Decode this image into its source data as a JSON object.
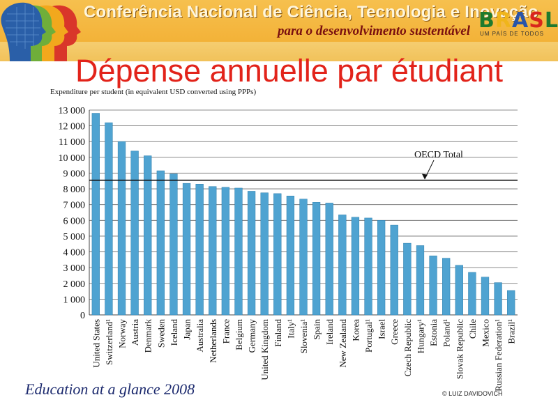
{
  "banner": {
    "title": "Conferência Nacional de Ciência, Tecnologia e Inovação",
    "subtitle": "para o desenvolvimento sustentável",
    "logo_word": [
      "B",
      "R",
      "A",
      "S",
      "L"
    ],
    "logo_tagline": "UM PAÍS DE TODOS"
  },
  "slide_title": "Dépense annuelle par étudiant",
  "source_caption": "Education at a glance 2008",
  "copyright": "© LUIZ DAVIDOVICH",
  "colors": {
    "bar": "#4fa3d1",
    "bar_edge": "#2f7fad",
    "title": "#e2231a",
    "grid": "#666666"
  },
  "chart_data": {
    "type": "bar",
    "title": "Expenditure per student (in equivalent USD converted using PPPs)",
    "ylim": [
      0,
      13000
    ],
    "yticks": [
      "0",
      "1 000",
      "2 000",
      "3 000",
      "4 000",
      "5 000",
      "6 000",
      "7 000",
      "8 000",
      "9 000",
      "10 000",
      "11 000",
      "12 000",
      "13 000"
    ],
    "ytick_values": [
      0,
      1000,
      2000,
      3000,
      4000,
      5000,
      6000,
      7000,
      8000,
      9000,
      10000,
      11000,
      12000,
      13000
    ],
    "grid": true,
    "categories": [
      "United States",
      "Switzerland¹",
      "Norway",
      "Austria",
      "Denmark",
      "Sweden",
      "Iceland",
      "Japan",
      "Australia",
      "Netherlands",
      "France",
      "Belgium",
      "Germany",
      "United Kingdom",
      "Finland",
      "Italy¹",
      "Slovenia¹",
      "Spain",
      "Ireland",
      "New Zealand",
      "Korea",
      "Portugal¹",
      "Israel",
      "Greece",
      "Czech Republic",
      "Hungary¹",
      "Estonia",
      "Poland¹",
      "Slovak Republic",
      "Chile",
      "Mexico",
      "Russian Federation¹",
      "Brazil¹"
    ],
    "values": [
      12800,
      12200,
      11000,
      10400,
      10100,
      9150,
      8950,
      8350,
      8300,
      8150,
      8100,
      8050,
      7850,
      7750,
      7700,
      7550,
      7350,
      7150,
      7100,
      6350,
      6200,
      6150,
      6000,
      5700,
      4550,
      4400,
      3750,
      3600,
      3150,
      2700,
      2400,
      2050,
      1550
    ],
    "reference_line": {
      "label": "OECD Total",
      "value": 8550
    }
  }
}
